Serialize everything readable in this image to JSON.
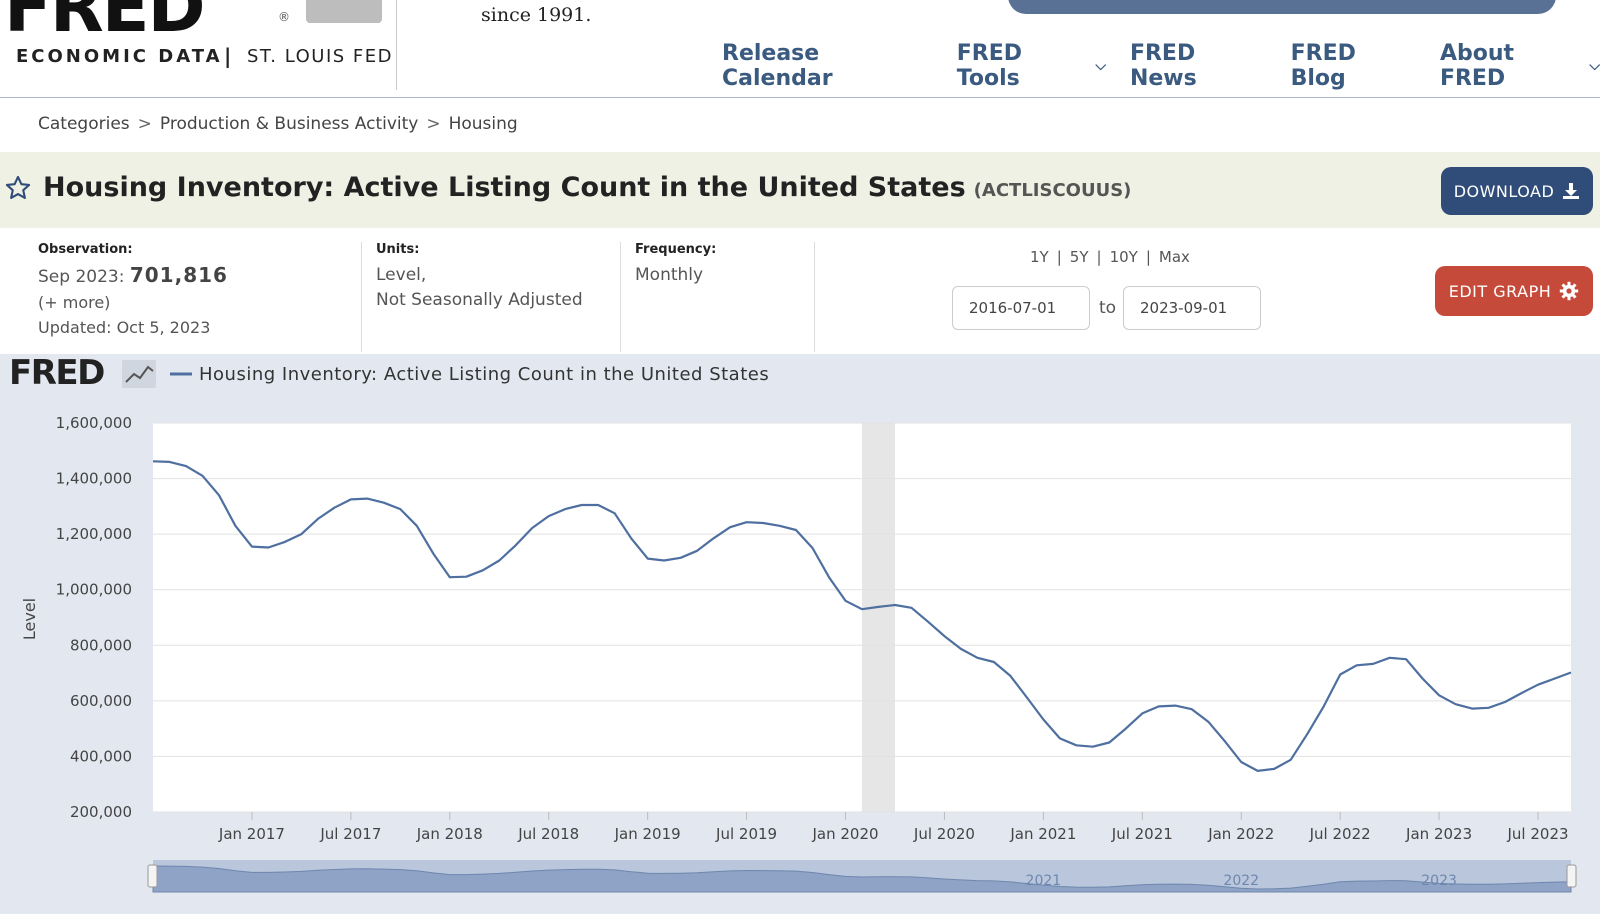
{
  "header": {
    "logo_word": "FRED",
    "logo_reg": "®",
    "subtitle_left": "ECONOMIC DATA",
    "subtitle_sep": "|",
    "subtitle_right": "ST. LOUIS FED",
    "tagline": "since 1991.",
    "nav": [
      "Release Calendar",
      "FRED Tools",
      "FRED News",
      "FRED Blog",
      "About FRED"
    ]
  },
  "breadcrumb": [
    "Categories",
    "Production & Business Activity",
    "Housing"
  ],
  "breadcrumb_sep": ">",
  "title": {
    "text": "Housing Inventory: Active Listing Count in the United States",
    "series_id": "(ACTLISCOUUS)",
    "download_label": "DOWNLOAD"
  },
  "meta": {
    "observation_label": "Observation:",
    "observation_period": "Sep 2023:",
    "observation_value": "701,816",
    "more_link": "(+ more)",
    "updated": "Updated: Oct 5, 2023",
    "units_label": "Units:",
    "units_line1": "Level,",
    "units_line2": "Not Seasonally Adjusted",
    "frequency_label": "Frequency:",
    "frequency_value": "Monthly",
    "range_links": [
      "1Y",
      "5Y",
      "10Y",
      "Max"
    ],
    "range_sep": "|",
    "date_from": "2016-07-01",
    "date_to": "2023-09-01",
    "to_label": "to",
    "edit_label": "EDIT GRAPH"
  },
  "colors": {
    "series": "#4e6f9f",
    "recession": "#e6e6e6",
    "panel": "#e3e8f0",
    "download_bg": "#2f4d78",
    "edit_bg": "#c64a3a"
  },
  "chart_data": {
    "type": "line",
    "title": "",
    "brand": "FRED",
    "legend": "Housing Inventory: Active Listing Count in the United States",
    "ylabel": "Level",
    "xlabel": "",
    "ylim": [
      200000,
      1600000
    ],
    "yticks": [
      200000,
      400000,
      600000,
      800000,
      1000000,
      1200000,
      1400000,
      1600000
    ],
    "ytick_labels": [
      "200,000",
      "400,000",
      "600,000",
      "800,000",
      "1,000,000",
      "1,200,000",
      "1,400,000",
      "1,600,000"
    ],
    "x_start": "2016-07",
    "x_end": "2023-09",
    "xticks": [
      "2017-01",
      "2017-07",
      "2018-01",
      "2018-07",
      "2019-01",
      "2019-07",
      "2020-01",
      "2020-07",
      "2021-01",
      "2021-07",
      "2022-01",
      "2022-07",
      "2023-01",
      "2023-07"
    ],
    "xtick_labels": [
      "Jan 2017",
      "Jul 2017",
      "Jan 2018",
      "Jul 2018",
      "Jan 2019",
      "Jul 2019",
      "Jan 2020",
      "Jul 2020",
      "Jan 2021",
      "Jul 2021",
      "Jan 2022",
      "Jul 2022",
      "Jan 2023",
      "Jul 2023"
    ],
    "recession": [
      "2020-02",
      "2020-04"
    ],
    "grid": true,
    "navigator_labels": [
      "2021",
      "2022",
      "2023"
    ],
    "series": [
      {
        "name": "Housing Inventory: Active Listing Count in the United States",
        "x_start": "2016-07",
        "values": [
          1462000,
          1460000,
          1445000,
          1410000,
          1340000,
          1230000,
          1155000,
          1152000,
          1172000,
          1200000,
          1255000,
          1295000,
          1325000,
          1328000,
          1313000,
          1290000,
          1230000,
          1130000,
          1045000,
          1047000,
          1070000,
          1105000,
          1160000,
          1222000,
          1265000,
          1290000,
          1305000,
          1305000,
          1275000,
          1185000,
          1112000,
          1105000,
          1115000,
          1140000,
          1185000,
          1225000,
          1243000,
          1240000,
          1230000,
          1215000,
          1150000,
          1045000,
          960000,
          930000,
          938000,
          945000,
          935000,
          885000,
          833000,
          787000,
          755000,
          740000,
          690000,
          612000,
          533000,
          465000,
          440000,
          435000,
          450000,
          500000,
          555000,
          580000,
          583000,
          570000,
          525000,
          455000,
          380000,
          348000,
          355000,
          388000,
          480000,
          580000,
          695000,
          728000,
          733000,
          755000,
          750000,
          680000,
          620000,
          588000,
          572000,
          575000,
          596000,
          628000,
          658000,
          680000,
          702000
        ]
      }
    ]
  }
}
